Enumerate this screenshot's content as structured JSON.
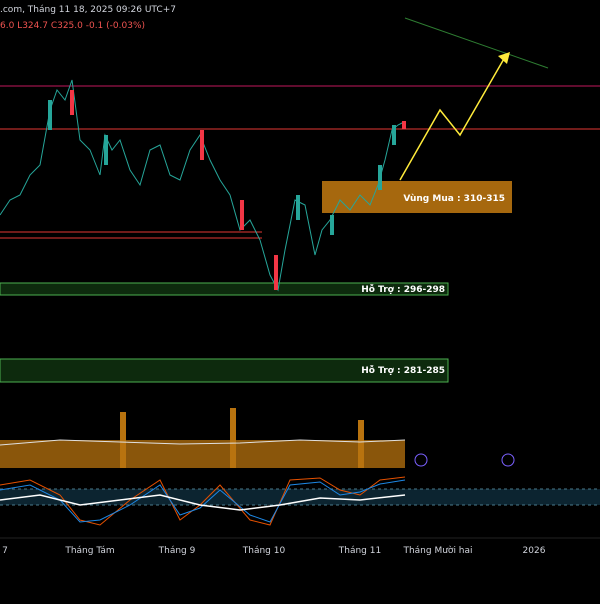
{
  "header": {
    "source": ".com, Tháng 11 18, 2025 09:26 UTC+7",
    "quote": "6.0 L324.7 C325.0 -0.1 (-0.03%)"
  },
  "zones": [
    {
      "label": "Vùng Mua : 310-315"
    },
    {
      "label": "Hỗ Trợ : 296-298"
    },
    {
      "label": "Hỗ Trợ : 281-285"
    }
  ],
  "time_axis": [
    "7",
    "Tháng Tám",
    "Tháng 9",
    "Tháng 10",
    "Tháng 11",
    "Tháng Mười hai",
    "2026"
  ]
}
